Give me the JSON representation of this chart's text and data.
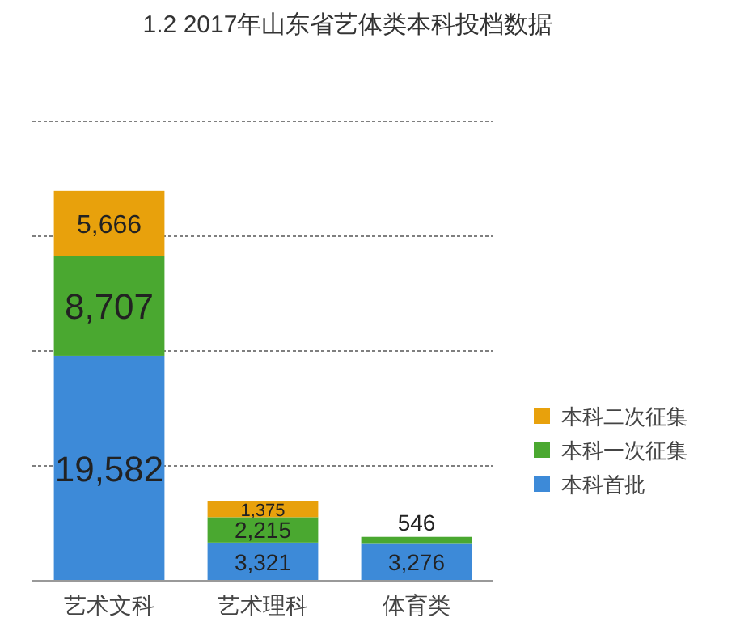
{
  "chart_data": {
    "type": "bar",
    "title": "1.2 2017年山东省艺体类本科投档数据",
    "stacked": true,
    "categories": [
      "艺术文科",
      "艺术理科",
      "体育类"
    ],
    "series": [
      {
        "name": "本科首批",
        "color": "#3d8ad8",
        "values": [
          19582,
          3321,
          3276
        ],
        "value_labels": [
          "19,582",
          "3,321",
          "3,276"
        ]
      },
      {
        "name": "本科一次征集",
        "color": "#4aa830",
        "values": [
          8707,
          2215,
          546
        ],
        "value_labels": [
          "8,707",
          "2,215",
          "546"
        ]
      },
      {
        "name": "本科二次征集",
        "color": "#e8a10c",
        "values": [
          5666,
          1375,
          null
        ],
        "value_labels": [
          "5,666",
          "1,375",
          null
        ]
      }
    ],
    "ylim": [
      0,
      40000
    ],
    "yticks": [
      {
        "value": 10000,
        "label": null
      },
      {
        "value": 20000,
        "label": null
      },
      {
        "value": 30000,
        "label": null
      },
      {
        "value": 40000,
        "label": null
      }
    ],
    "tick_labels": "x",
    "grid": "y",
    "legend": "right"
  }
}
